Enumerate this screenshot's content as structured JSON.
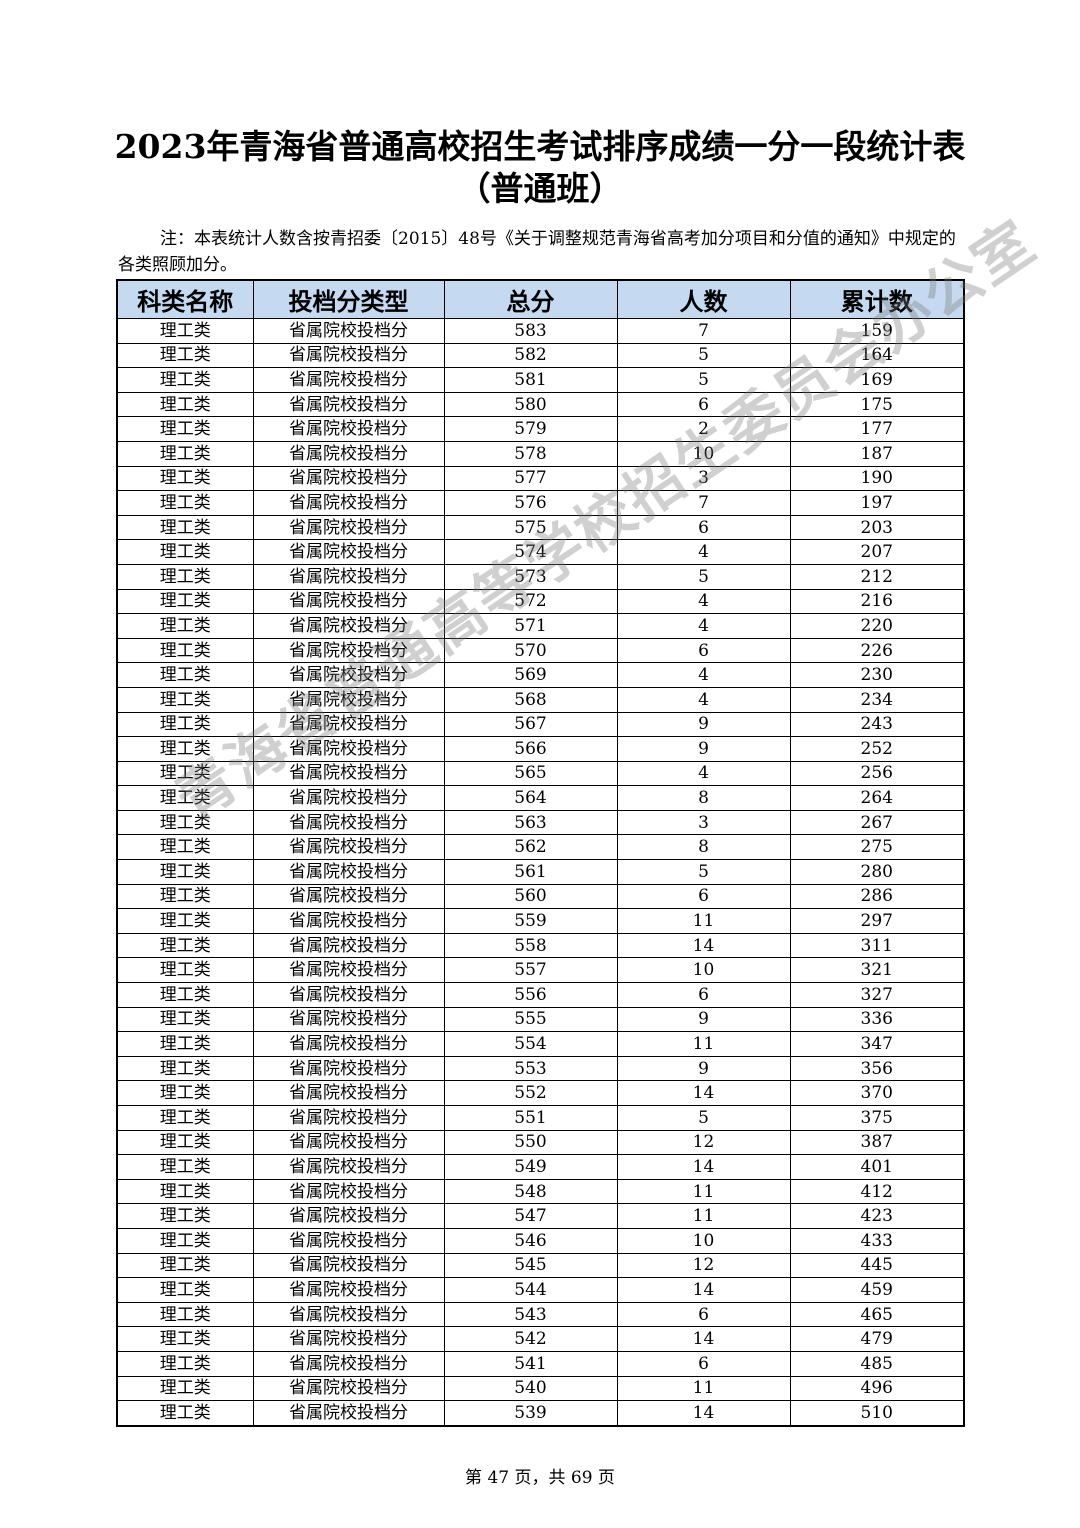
{
  "title": "2023年青海省普通高校招生考试排序成绩一分一段统计表",
  "subtitle": "（普通班）",
  "note": "注：本表统计人数含按青招委〔2015〕48号《关于调整规范青海省高考加分项目和分值的通知》中规定的各类照顾加分。",
  "header_color": "#c5d9f1",
  "columns": [
    "科类名称",
    "投档分类型",
    "总分",
    "人数",
    "累计数"
  ],
  "category": "理工类",
  "type": "省属院校投档分",
  "rows": [
    [
      583,
      7,
      159
    ],
    [
      582,
      5,
      164
    ],
    [
      581,
      5,
      169
    ],
    [
      580,
      6,
      175
    ],
    [
      579,
      2,
      177
    ],
    [
      578,
      10,
      187
    ],
    [
      577,
      3,
      190
    ],
    [
      576,
      7,
      197
    ],
    [
      575,
      6,
      203
    ],
    [
      574,
      4,
      207
    ],
    [
      573,
      5,
      212
    ],
    [
      572,
      4,
      216
    ],
    [
      571,
      4,
      220
    ],
    [
      570,
      6,
      226
    ],
    [
      569,
      4,
      230
    ],
    [
      568,
      4,
      234
    ],
    [
      567,
      9,
      243
    ],
    [
      566,
      9,
      252
    ],
    [
      565,
      4,
      256
    ],
    [
      564,
      8,
      264
    ],
    [
      563,
      3,
      267
    ],
    [
      562,
      8,
      275
    ],
    [
      561,
      5,
      280
    ],
    [
      560,
      6,
      286
    ],
    [
      559,
      11,
      297
    ],
    [
      558,
      14,
      311
    ],
    [
      557,
      10,
      321
    ],
    [
      556,
      6,
      327
    ],
    [
      555,
      9,
      336
    ],
    [
      554,
      11,
      347
    ],
    [
      553,
      9,
      356
    ],
    [
      552,
      14,
      370
    ],
    [
      551,
      5,
      375
    ],
    [
      550,
      12,
      387
    ],
    [
      549,
      14,
      401
    ],
    [
      548,
      11,
      412
    ],
    [
      547,
      11,
      423
    ],
    [
      546,
      10,
      433
    ],
    [
      545,
      12,
      445
    ],
    [
      544,
      14,
      459
    ],
    [
      543,
      6,
      465
    ],
    [
      542,
      14,
      479
    ],
    [
      541,
      6,
      485
    ],
    [
      540,
      11,
      496
    ],
    [
      539,
      14,
      510
    ]
  ],
  "footer": "第 47 页，共 69 页",
  "watermark": "青海省普通高等学校招生委员会办公室"
}
